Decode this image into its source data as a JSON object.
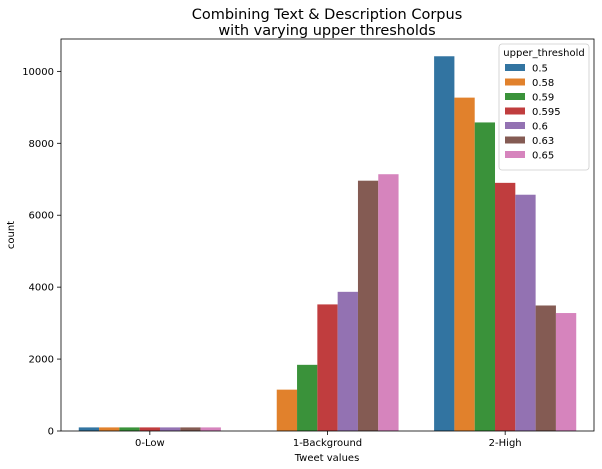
{
  "chart_data": {
    "type": "bar",
    "title": "Combining Text & Description Corpus",
    "subtitle": "with varying upper thresholds",
    "xlabel": "Tweet values",
    "ylabel": "count",
    "categories": [
      "0-Low",
      "1-Background",
      "2-High"
    ],
    "ylim": [
      0,
      10900
    ],
    "yticks": [
      0,
      2000,
      4000,
      6000,
      8000,
      10000
    ],
    "grid": false,
    "legend": {
      "title": "upper_threshold",
      "position": "top-right"
    },
    "series": [
      {
        "name": "0.5",
        "color": "#3274a1",
        "values": [
          100,
          0,
          10420
        ]
      },
      {
        "name": "0.58",
        "color": "#e1812c",
        "values": [
          100,
          1150,
          9270
        ]
      },
      {
        "name": "0.59",
        "color": "#3a923a",
        "values": [
          100,
          1840,
          8580
        ]
      },
      {
        "name": "0.595",
        "color": "#c03d3e",
        "values": [
          100,
          3520,
          6900
        ]
      },
      {
        "name": "0.6",
        "color": "#9372b2",
        "values": [
          100,
          3870,
          6570
        ]
      },
      {
        "name": "0.63",
        "color": "#845b53",
        "values": [
          100,
          6960,
          3490
        ]
      },
      {
        "name": "0.65",
        "color": "#d684bd",
        "values": [
          100,
          7140,
          3280
        ]
      }
    ]
  }
}
